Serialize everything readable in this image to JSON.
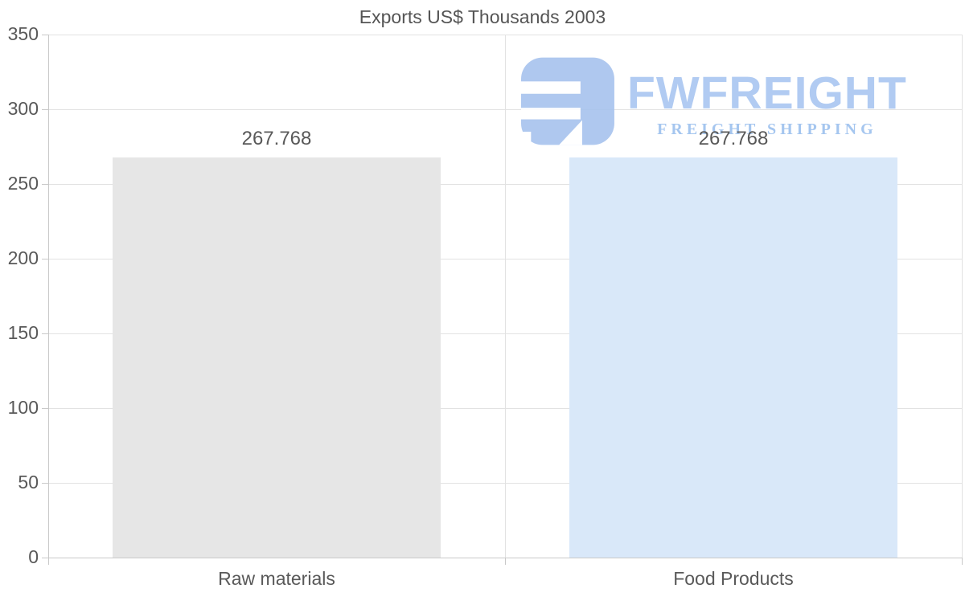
{
  "chart_data": {
    "type": "bar",
    "title": "Exports US$ Thousands 2003",
    "categories": [
      "Raw materials",
      "Food Products"
    ],
    "values": [
      267.768,
      267.768
    ],
    "value_labels": [
      "267.768",
      "267.768"
    ],
    "bar_colors": [
      "#e6e6e6",
      "#d9e8f9"
    ],
    "xlabel": "",
    "ylabel": "",
    "ylim": [
      0,
      350
    ],
    "yticks": [
      0,
      50,
      100,
      150,
      200,
      250,
      300,
      350
    ],
    "grid": true,
    "legend_position": "none",
    "bar_width_fraction": 0.72
  },
  "watermark": {
    "brand": "FWFREIGHT",
    "tagline": "FREIGHT SHIPPING",
    "icon": "fwfreight-logo-icon",
    "icon_color": "#a7c3ee",
    "brand_color": "#a9c6f1",
    "tagline_color": "#9cc0ee"
  }
}
